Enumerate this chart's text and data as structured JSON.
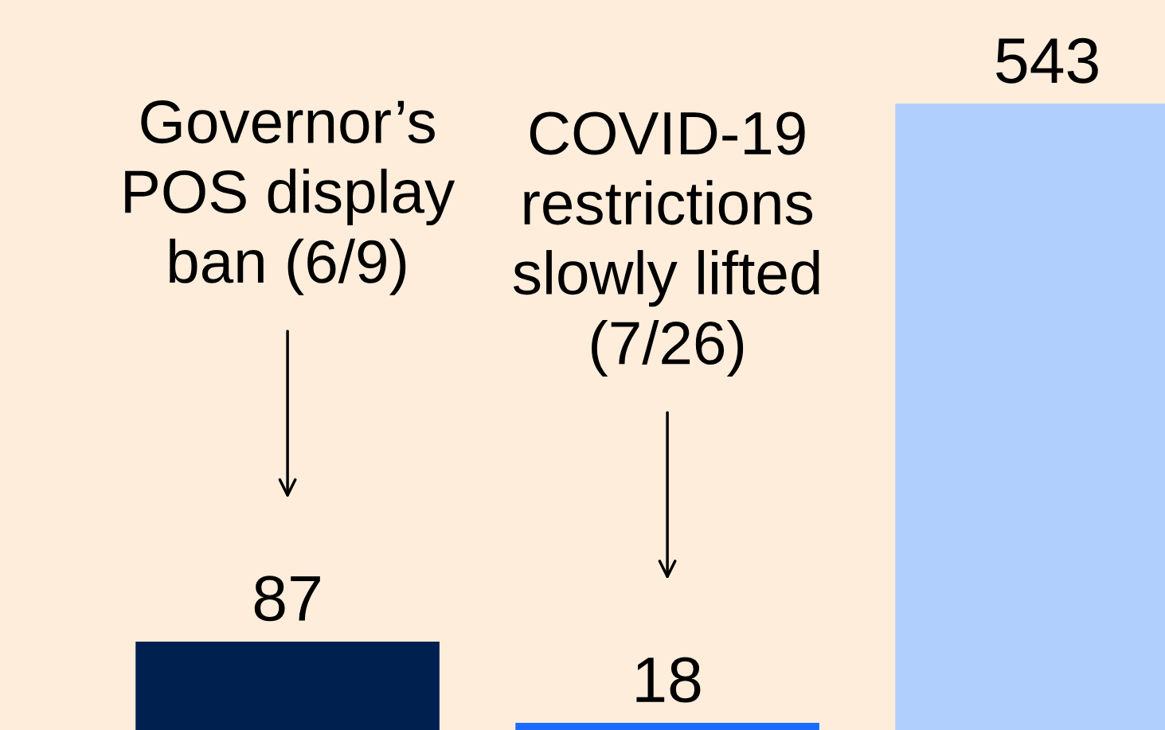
{
  "chart_data": {
    "type": "bar",
    "categories": [
      null,
      null,
      null
    ],
    "values": [
      87,
      18,
      543
    ],
    "colors": [
      "#002050",
      "#1a6cff",
      "#b0cffc"
    ],
    "ylim": [
      12,
      631
    ],
    "grid": false,
    "data_labels": true,
    "annotations": [
      "Governor’s\nPOS display\nban (6/9)",
      "COVID-19\nrestrictions\nslowly lifted\n(7/26)"
    ]
  }
}
